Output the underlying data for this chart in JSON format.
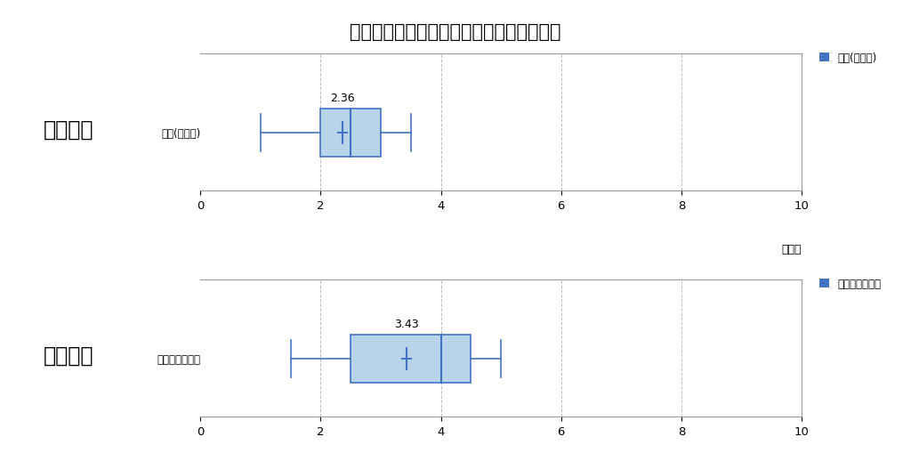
{
  "title": "国公立　医学部医学科への合格実績の比較",
  "schools": [
    "土浦一高",
    "水戸一高"
  ],
  "series_label_top": "医科(国公立)",
  "series_label_bottom": "医科（国公立）",
  "legend_label_top": "医科(国公立)",
  "legend_label_bottom": "医科（国公立）",
  "xlabel": "（人）",
  "xlim": [
    0,
    10
  ],
  "xticks": [
    0,
    2,
    4,
    6,
    8,
    10
  ],
  "box_color": "#b8d4ea",
  "box_edge_color": "#4472c4",
  "median_color": "#4472c4",
  "whisker_color": "#4472c4",
  "mean_color": "#4472c4",
  "legend_color": "#4472c4",
  "background_color": "#ffffff",
  "title_fontsize": 15,
  "top_box": {
    "whisker_low": 1.0,
    "q1": 2.0,
    "median": 2.5,
    "q3": 3.0,
    "whisker_high": 3.5,
    "mean": 2.36,
    "mean_label": "2.36"
  },
  "bottom_box": {
    "whisker_low": 1.5,
    "q1": 2.5,
    "median": 4.0,
    "q3": 4.5,
    "whisker_high": 5.0,
    "mean": 3.43,
    "mean_label": "3.43"
  }
}
